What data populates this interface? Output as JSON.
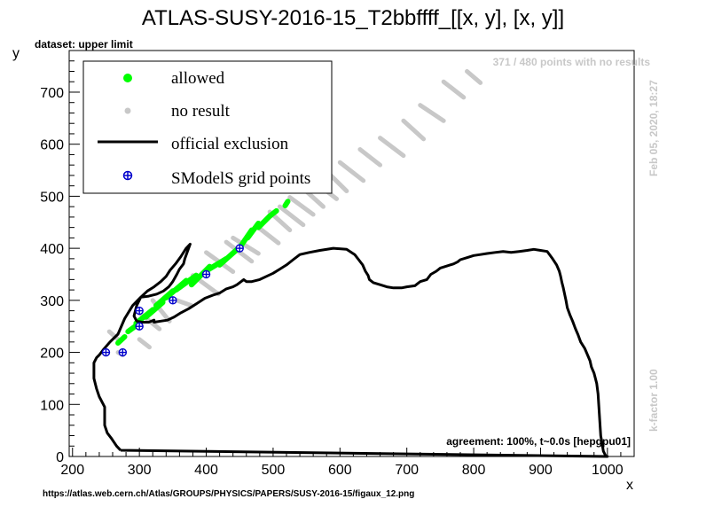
{
  "chart_data": {
    "type": "scatter",
    "title": "ATLAS-SUSY-2016-15_T2bbffff_[[x, y], [x, y]]",
    "subtitle": "dataset: upper limit",
    "xlabel": "x",
    "ylabel": "y",
    "xlim": [
      195,
      1040
    ],
    "ylim": [
      0,
      780
    ],
    "x_ticks": [
      200,
      300,
      400,
      500,
      600,
      700,
      800,
      900,
      1000
    ],
    "y_ticks": [
      0,
      100,
      200,
      300,
      400,
      500,
      600,
      700
    ],
    "grid": false,
    "legend_position": "top-left",
    "legend": [
      "allowed",
      "no result",
      "official exclusion",
      "SModelS grid points"
    ],
    "annotations": {
      "points_info": "371 / 480 points with no results",
      "date": "Feb 05, 2020, 18:27",
      "kfactor": "k-factor 1.00",
      "agreement": "agreement: 100%, t~0.0s [hepgpu01]",
      "source_url": "https://atlas.web.cern.ch/Atlas/GROUPS/PHYSICS/PAPERS/SUSY-2016-15/figaux_12.png"
    },
    "colors": {
      "allowed": "#00ff00",
      "no_result": "#c8c8c8",
      "exclusion": "#000000",
      "grid_points": "#0000cc",
      "annotation_text": "#c8c8c8"
    },
    "series": [
      {
        "name": "allowed",
        "segments": [
          [
            [
              268,
              218
            ],
            [
              278,
              230
            ]
          ],
          [
            [
              283,
              240
            ],
            [
              300,
              256
            ]
          ],
          [
            [
              295,
              256
            ],
            [
              320,
              282
            ]
          ],
          [
            [
              310,
              268
            ],
            [
              335,
              296
            ]
          ],
          [
            [
              325,
              290
            ],
            [
              350,
              318
            ]
          ],
          [
            [
              340,
              305
            ],
            [
              370,
              338
            ]
          ],
          [
            [
              355,
              320
            ],
            [
              385,
              348
            ]
          ],
          [
            [
              378,
              330
            ],
            [
              405,
              365
            ]
          ],
          [
            [
              398,
              355
            ],
            [
              430,
              380
            ]
          ],
          [
            [
              420,
              368
            ],
            [
              448,
              400
            ]
          ],
          [
            [
              452,
              405
            ],
            [
              468,
              435
            ]
          ],
          [
            [
              462,
              420
            ],
            [
              478,
              448
            ]
          ],
          [
            [
              478,
              440
            ],
            [
              495,
              462
            ]
          ],
          [
            [
              495,
              462
            ],
            [
              505,
              472
            ]
          ],
          [
            [
              518,
              482
            ],
            [
              522,
              490
            ]
          ]
        ]
      },
      {
        "name": "no result",
        "segments": [
          [
            [
              255,
              240
            ],
            [
              268,
              225
            ]
          ],
          [
            [
              268,
              200
            ],
            [
              275,
              195
            ]
          ],
          [
            [
              300,
              225
            ],
            [
              315,
              210
            ]
          ],
          [
            [
              300,
              276
            ],
            [
              330,
              245
            ]
          ],
          [
            [
              320,
              300
            ],
            [
              345,
              260
            ]
          ],
          [
            [
              345,
              305
            ],
            [
              378,
              290
            ]
          ],
          [
            [
              380,
              348
            ],
            [
              418,
              312
            ]
          ],
          [
            [
              400,
              392
            ],
            [
              440,
              355
            ]
          ],
          [
            [
              430,
              412
            ],
            [
              468,
              375
            ]
          ],
          [
            [
              440,
              420
            ],
            [
              478,
              390
            ]
          ],
          [
            [
              478,
              440
            ],
            [
              508,
              410
            ]
          ],
          [
            [
              495,
              470
            ],
            [
              525,
              435
            ]
          ],
          [
            [
              510,
              480
            ],
            [
              545,
              445
            ]
          ],
          [
            [
              525,
              498
            ],
            [
              560,
              465
            ]
          ],
          [
            [
              545,
              515
            ],
            [
              575,
              480
            ]
          ],
          [
            [
              560,
              530
            ],
            [
              595,
              495
            ]
          ],
          [
            [
              580,
              548
            ],
            [
              610,
              510
            ]
          ],
          [
            [
              600,
              565
            ],
            [
              635,
              530
            ]
          ],
          [
            [
              630,
              590
            ],
            [
              660,
              560
            ]
          ],
          [
            [
              660,
              612
            ],
            [
              695,
              578
            ]
          ],
          [
            [
              695,
              645
            ],
            [
              725,
              610
            ]
          ],
          [
            [
              720,
              675
            ],
            [
              755,
              645
            ]
          ],
          [
            [
              755,
              720
            ],
            [
              785,
              690
            ]
          ],
          [
            [
              790,
              740
            ],
            [
              810,
              718
            ]
          ]
        ]
      },
      {
        "name": "official exclusion",
        "x": [
          272,
          272,
          266,
          258,
          252,
          248,
          248,
          240,
          236,
          232,
          232,
          232,
          236,
          240,
          246,
          256,
          268,
          278,
          290,
          302,
          314,
          326,
          336,
          344,
          350,
          356,
          360,
          366,
          368,
          376,
          370,
          362,
          354,
          346,
          340,
          332,
          322,
          312,
          302,
          296,
          292,
          296,
          304,
          314,
          322,
          322,
          332,
          342,
          352,
          362,
          374,
          386,
          398,
          410,
          420,
          430,
          440,
          446,
          450,
          456,
          460,
          468,
          480,
          490,
          500,
          510,
          520,
          530,
          540,
          554,
          570,
          590,
          610,
          622,
          628,
          634,
          638,
          642,
          644,
          650,
          660,
          670,
          680,
          692,
          700,
          712,
          720,
          730,
          736,
          744,
          750,
          760,
          770,
          776,
          780,
          790,
          800,
          810,
          820,
          832,
          844,
          856,
          868,
          880,
          890,
          900,
          910,
          918,
          924,
          928,
          930,
          932,
          934,
          936,
          938,
          940,
          944,
          948,
          952,
          956,
          960,
          966,
          970,
          974,
          976,
          980,
          982,
          984,
          986,
          988,
          990,
          994,
          998,
          1000,
          1000,
          272
        ],
        "y": [
          12,
          12,
          20,
          35,
          45,
          60,
          95,
          115,
          130,
          150,
          165,
          180,
          190,
          195,
          205,
          220,
          235,
          265,
          290,
          306,
          308,
          312,
          318,
          326,
          336,
          350,
          360,
          370,
          380,
          408,
          400,
          384,
          370,
          358,
          346,
          336,
          326,
          318,
          306,
          290,
          270,
          260,
          258,
          258,
          262,
          258,
          260,
          262,
          268,
          276,
          284,
          294,
          304,
          310,
          314,
          322,
          326,
          330,
          334,
          340,
          336,
          336,
          340,
          346,
          352,
          360,
          368,
          378,
          388,
          392,
          396,
          400,
          398,
          388,
          378,
          368,
          356,
          348,
          340,
          334,
          330,
          326,
          324,
          324,
          326,
          328,
          336,
          340,
          350,
          356,
          362,
          366,
          370,
          374,
          378,
          382,
          386,
          388,
          390,
          392,
          394,
          392,
          394,
          396,
          398,
          396,
          394,
          380,
          368,
          356,
          346,
          334,
          324,
          312,
          300,
          286,
          272,
          260,
          246,
          234,
          220,
          208,
          196,
          184,
          172,
          160,
          150,
          140,
          120,
          80,
          40,
          10,
          0,
          0,
          0,
          12
        ]
      },
      {
        "name": "SModelS grid points",
        "x": [
          250,
          275,
          300,
          300,
          350,
          400,
          450
        ],
        "y": [
          200,
          200,
          250,
          280,
          300,
          350,
          400
        ]
      }
    ]
  }
}
